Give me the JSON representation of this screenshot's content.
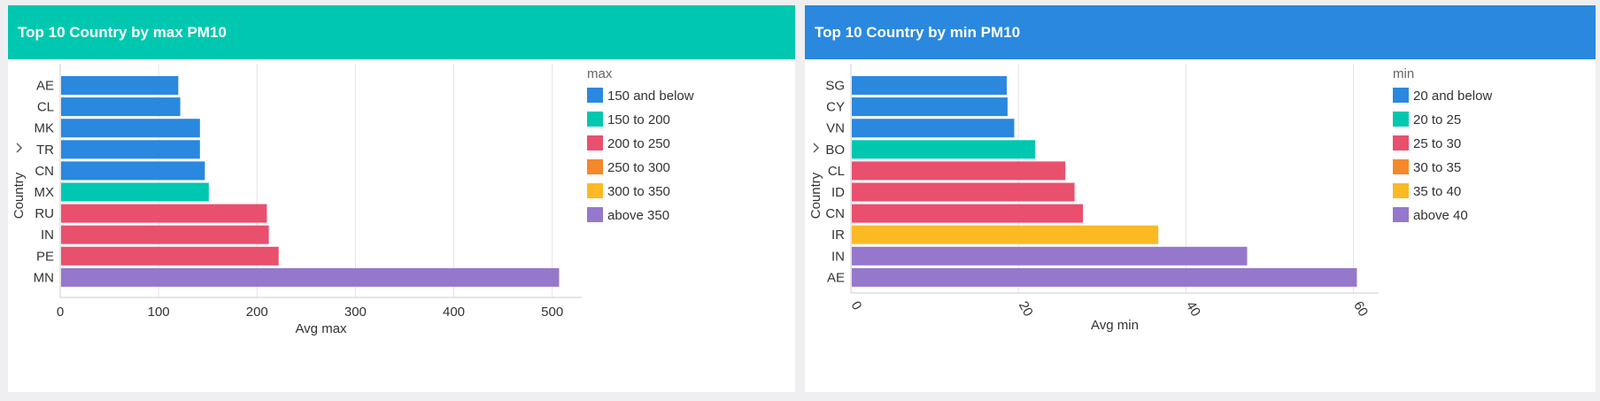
{
  "legend_colors": {
    "blue": "#2a88df",
    "teal": "#00c8b0",
    "red": "#e8506e",
    "orange": "#f5882a",
    "yellow": "#fbb924",
    "purple": "#9578cc"
  },
  "chart_data": [
    {
      "type": "bar",
      "orientation": "horizontal",
      "title": "Top 10 Country by max PM10",
      "header_color": "#00c8b0",
      "xlabel": "Avg max",
      "ylabel": "Country",
      "xlim": [
        0,
        530
      ],
      "xticks": [
        0,
        100,
        200,
        300,
        400,
        500
      ],
      "tick_rotation": 0,
      "grid": true,
      "categories": [
        "AE",
        "CL",
        "MK",
        "TR",
        "CN",
        "MX",
        "RU",
        "IN",
        "PE",
        "MN"
      ],
      "values": [
        120,
        122,
        142,
        142,
        147,
        151,
        210,
        212,
        222,
        507
      ],
      "bar_groups": [
        0,
        0,
        0,
        0,
        0,
        1,
        2,
        2,
        2,
        5
      ],
      "legend": {
        "title": "max",
        "position": "right",
        "items": [
          {
            "label": "150 and below",
            "color": "#2a88df"
          },
          {
            "label": "150 to 200",
            "color": "#00c8b0"
          },
          {
            "label": "200 to 250",
            "color": "#e8506e"
          },
          {
            "label": "250 to 300",
            "color": "#f5882a"
          },
          {
            "label": "300 to 350",
            "color": "#fbb924"
          },
          {
            "label": "above 350",
            "color": "#9578cc"
          }
        ]
      }
    },
    {
      "type": "bar",
      "orientation": "horizontal",
      "title": "Top 10 Country by min PM10",
      "header_color": "#2a88df",
      "xlabel": "Avg min",
      "ylabel": "Country",
      "xlim": [
        0,
        63
      ],
      "xticks": [
        0,
        20,
        40,
        60
      ],
      "tick_rotation": 60,
      "grid": true,
      "categories": [
        "SG",
        "CY",
        "VN",
        "BO",
        "CL",
        "ID",
        "CN",
        "IR",
        "IN",
        "AE"
      ],
      "values": [
        18.6,
        18.7,
        19.5,
        22,
        25.6,
        26.7,
        27.7,
        36.7,
        47.3,
        60.4
      ],
      "bar_groups": [
        0,
        0,
        0,
        1,
        2,
        2,
        2,
        4,
        5,
        5
      ],
      "legend": {
        "title": "min",
        "position": "right",
        "items": [
          {
            "label": "20 and below",
            "color": "#2a88df"
          },
          {
            "label": "20 to 25",
            "color": "#00c8b0"
          },
          {
            "label": "25 to 30",
            "color": "#e8506e"
          },
          {
            "label": "30 to 35",
            "color": "#f5882a"
          },
          {
            "label": "35 to 40",
            "color": "#fbb924"
          },
          {
            "label": "above 40",
            "color": "#9578cc"
          }
        ]
      }
    }
  ]
}
